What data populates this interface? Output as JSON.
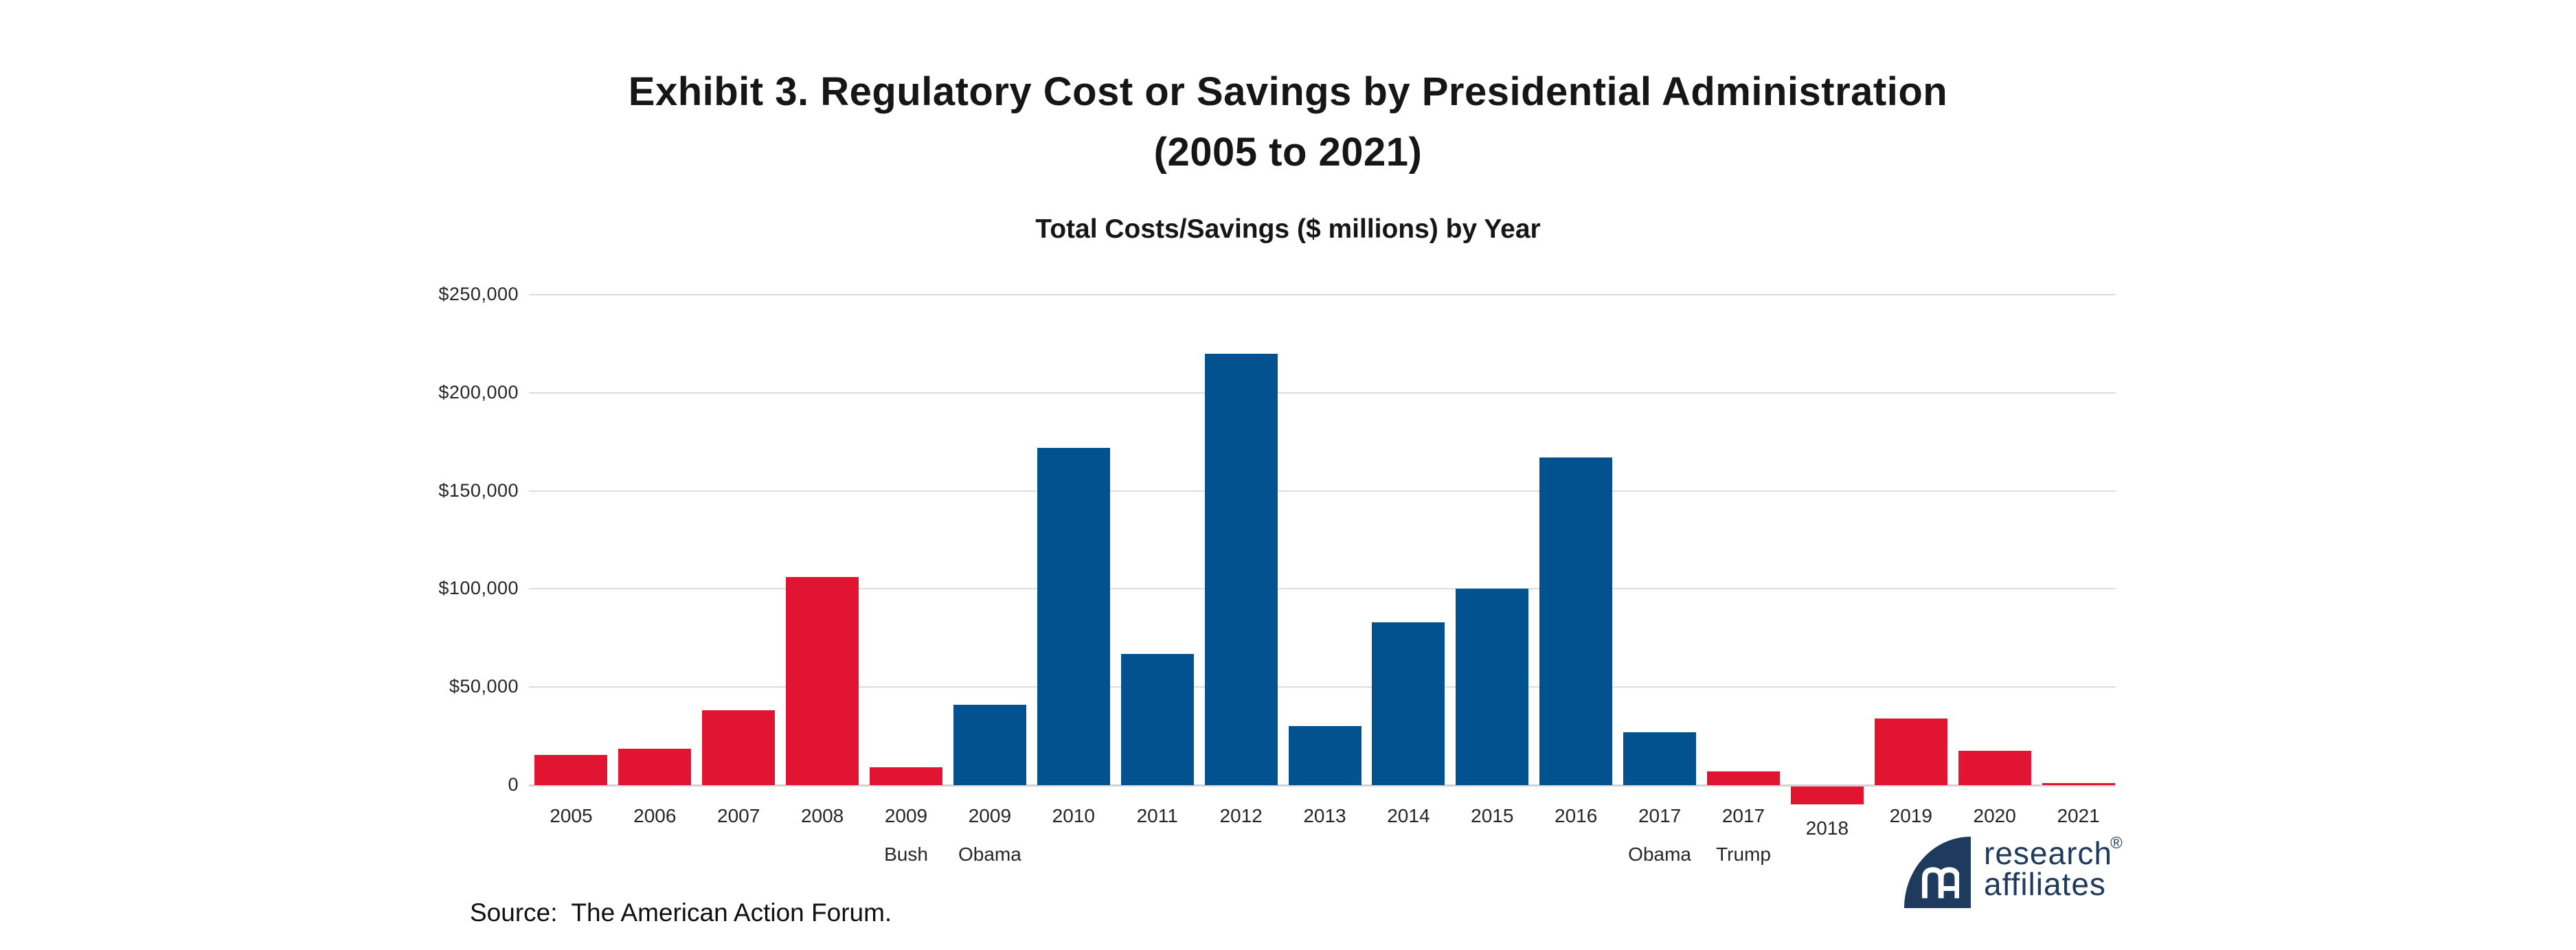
{
  "page": {
    "background": "#ffffff"
  },
  "chart_data": {
    "type": "bar",
    "title_line1": "Exhibit 3. Regulatory Cost or Savings by Presidential Administration",
    "title_line2": "(2005 to 2021)",
    "subtitle": "Total Costs/Savings ($ millions) by Year",
    "unit": "$ millions",
    "grid": true,
    "legend": null,
    "categories": [
      "2005",
      "2006",
      "2007",
      "2008",
      "2009 Bush",
      "2009 Obama",
      "2010",
      "2011",
      "2012",
      "2013",
      "2014",
      "2015",
      "2016",
      "2017 Obama",
      "2017 Trump",
      "2018",
      "2019",
      "2020",
      "2021"
    ],
    "values": [
      15500,
      18500,
      38000,
      106000,
      9000,
      41000,
      172000,
      67000,
      220000,
      30000,
      83000,
      100000,
      167000,
      27000,
      7000,
      -9000,
      34000,
      17500,
      1000
    ],
    "bars": [
      {
        "label": "2005",
        "sublabel": "",
        "value": 15500,
        "party": "republican"
      },
      {
        "label": "2006",
        "sublabel": "",
        "value": 18500,
        "party": "republican"
      },
      {
        "label": "2007",
        "sublabel": "",
        "value": 38000,
        "party": "republican"
      },
      {
        "label": "2008",
        "sublabel": "",
        "value": 106000,
        "party": "republican"
      },
      {
        "label": "2009",
        "sublabel": "Bush",
        "value": 9000,
        "party": "republican"
      },
      {
        "label": "2009",
        "sublabel": "Obama",
        "value": 41000,
        "party": "democrat"
      },
      {
        "label": "2010",
        "sublabel": "",
        "value": 172000,
        "party": "democrat"
      },
      {
        "label": "2011",
        "sublabel": "",
        "value": 67000,
        "party": "democrat"
      },
      {
        "label": "2012",
        "sublabel": "",
        "value": 220000,
        "party": "democrat"
      },
      {
        "label": "2013",
        "sublabel": "",
        "value": 30000,
        "party": "democrat"
      },
      {
        "label": "2014",
        "sublabel": "",
        "value": 83000,
        "party": "democrat"
      },
      {
        "label": "2015",
        "sublabel": "",
        "value": 100000,
        "party": "democrat"
      },
      {
        "label": "2016",
        "sublabel": "",
        "value": 167000,
        "party": "democrat"
      },
      {
        "label": "2017",
        "sublabel": "Obama",
        "value": 27000,
        "party": "democrat"
      },
      {
        "label": "2017",
        "sublabel": "Trump",
        "value": 7000,
        "party": "republican"
      },
      {
        "label": "2018",
        "sublabel": "",
        "value": -9000,
        "party": "republican"
      },
      {
        "label": "2019",
        "sublabel": "",
        "value": 34000,
        "party": "republican"
      },
      {
        "label": "2020",
        "sublabel": "",
        "value": 17500,
        "party": "republican"
      },
      {
        "label": "2021",
        "sublabel": "",
        "value": 1000,
        "party": "republican"
      }
    ],
    "colors": {
      "republican": "#e11432",
      "democrat": "#01528f"
    },
    "y_axis": {
      "min": -20000,
      "max": 250000,
      "ticks": [
        {
          "label": "$250,000",
          "value": 250000
        },
        {
          "label": "$200,000",
          "value": 200000
        },
        {
          "label": "$150,000",
          "value": 150000
        },
        {
          "label": "$100,000",
          "value": 100000
        },
        {
          "label": "$50,000",
          "value": 50000
        },
        {
          "label": "0",
          "value": 0
        }
      ]
    }
  },
  "source": {
    "label": "Source:  The American Action Forum."
  },
  "logo": {
    "line1": "research",
    "line2": "affiliates",
    "reg": "®",
    "monogram": "RA"
  },
  "icons": {
    "logo_monogram": "ra-monogram"
  }
}
